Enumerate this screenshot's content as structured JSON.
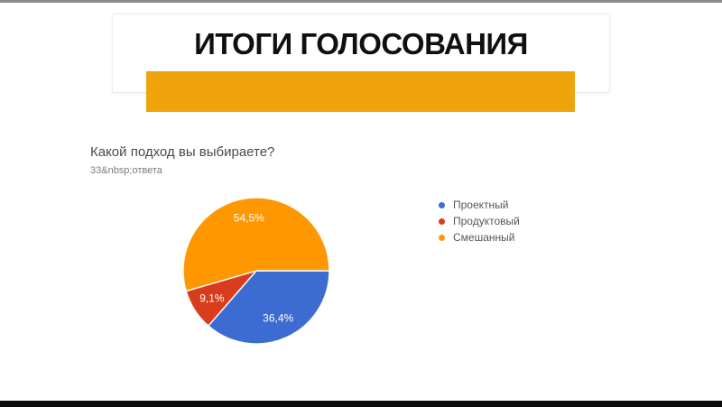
{
  "slide": {
    "title": "ИТОГИ ГОЛОСОВАНИЯ",
    "accent_bar_color": "#F0A40C",
    "top_strip_color": "#8A8A8A",
    "bottom_bar_color": "#0C0C0C"
  },
  "form": {
    "question": "Какой подход вы выбираете?",
    "responses": "33&nbsp;ответа"
  },
  "chart_data": {
    "type": "pie",
    "title": "Какой подход вы выбираете?",
    "responses_count": 33,
    "labels": [
      "Проектный",
      "Продуктовый",
      "Смешанный"
    ],
    "values": [
      36.4,
      9.1,
      54.5
    ],
    "percent_labels": [
      "36,4%",
      "9,1%",
      "54,5%"
    ],
    "colors": [
      "#3C6BD2",
      "#D93C1C",
      "#FF9800"
    ],
    "slice_border_color": "#FFFFFF",
    "start_angle_deg": 0,
    "direction": "clockwise",
    "legend_position": "right",
    "label_color": "#FFFFFF"
  }
}
